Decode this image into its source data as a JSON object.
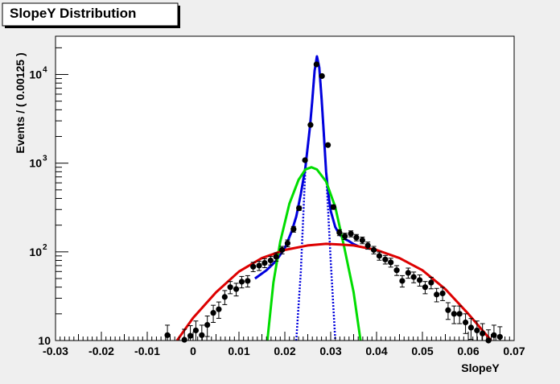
{
  "chart_data": {
    "type": "scatter",
    "title": "SlopeY Distribution",
    "xlabel": "SlopeY",
    "ylabel": "Events / ( 0.00125 )",
    "xlim": [
      -0.03,
      0.07
    ],
    "ylim": [
      10,
      27000
    ],
    "yscale": "log",
    "grid": false,
    "legend": "none",
    "x_ticks": [
      {
        "v": -0.03,
        "label": "-0.03"
      },
      {
        "v": -0.02,
        "label": "-0.02"
      },
      {
        "v": -0.01,
        "label": "-0.01"
      },
      {
        "v": 0,
        "label": "0"
      },
      {
        "v": 0.01,
        "label": "0.01"
      },
      {
        "v": 0.02,
        "label": "0.02"
      },
      {
        "v": 0.03,
        "label": "0.03"
      },
      {
        "v": 0.04,
        "label": "0.04"
      },
      {
        "v": 0.05,
        "label": "0.05"
      },
      {
        "v": 0.06,
        "label": "0.06"
      },
      {
        "v": 0.07,
        "label": "0.07"
      }
    ],
    "y_ticks": [
      {
        "v": 10,
        "base": "10",
        "exp": ""
      },
      {
        "v": 100,
        "base": "10",
        "exp": "2"
      },
      {
        "v": 1000,
        "base": "10",
        "exp": "3"
      },
      {
        "v": 10000,
        "base": "10",
        "exp": "4"
      }
    ],
    "series": [
      {
        "kind": "points",
        "color": "#000000",
        "points": [
          [
            -0.0056,
            11.5,
            3.4
          ],
          [
            -0.0031,
            7.5,
            2.7
          ],
          [
            -0.0019,
            10.2,
            3.2
          ],
          [
            -0.0006,
            11.3,
            3.4
          ],
          [
            0.0006,
            13.0,
            3.6
          ],
          [
            0.0019,
            11.5,
            3.4
          ],
          [
            0.0031,
            15.0,
            3.9
          ],
          [
            0.0044,
            20.5,
            4.5
          ],
          [
            0.0056,
            22.5,
            4.7
          ],
          [
            0.0069,
            31.0,
            5.6
          ],
          [
            0.0081,
            40.0,
            6.3
          ],
          [
            0.0094,
            38.0,
            6.2
          ],
          [
            0.0106,
            46.0,
            6.8
          ],
          [
            0.0119,
            47.0,
            6.9
          ],
          [
            0.0131,
            68.0,
            8.2
          ],
          [
            0.0144,
            70.0,
            8.4
          ],
          [
            0.0156,
            75.0,
            8.7
          ],
          [
            0.0169,
            80.0,
            8.9
          ],
          [
            0.0181,
            88.0,
            9.4
          ],
          [
            0.0194,
            105.0,
            10.2
          ],
          [
            0.0206,
            125.0,
            11.2
          ],
          [
            0.0219,
            180.0,
            13.4
          ],
          [
            0.0231,
            310.0,
            17.6
          ],
          [
            0.0244,
            1080.0,
            33
          ],
          [
            0.0256,
            2700.0,
            52
          ],
          [
            0.0269,
            13000.0,
            114
          ],
          [
            0.0281,
            9600.0,
            98
          ],
          [
            0.0294,
            1600.0,
            40
          ],
          [
            0.0306,
            320.0,
            18
          ],
          [
            0.0319,
            165.0,
            12.8
          ],
          [
            0.0331,
            150.0,
            12.2
          ],
          [
            0.0344,
            160.0,
            12.6
          ],
          [
            0.0356,
            145.0,
            12.0
          ],
          [
            0.0369,
            135.0,
            11.6
          ],
          [
            0.0381,
            118.0,
            10.9
          ],
          [
            0.0394,
            105.0,
            10.2
          ],
          [
            0.0406,
            90.0,
            9.5
          ],
          [
            0.0419,
            82.0,
            9.1
          ],
          [
            0.0431,
            76.0,
            8.7
          ],
          [
            0.0444,
            62.0,
            7.9
          ],
          [
            0.0456,
            47.0,
            6.9
          ],
          [
            0.0469,
            58.0,
            7.6
          ],
          [
            0.0481,
            52.0,
            7.2
          ],
          [
            0.0494,
            48.0,
            6.9
          ],
          [
            0.0506,
            40.0,
            6.3
          ],
          [
            0.0519,
            45.0,
            6.7
          ],
          [
            0.0531,
            33.0,
            5.7
          ],
          [
            0.0544,
            34.0,
            5.8
          ],
          [
            0.0556,
            22.0,
            4.7
          ],
          [
            0.0569,
            20.0,
            4.5
          ],
          [
            0.0581,
            20.0,
            4.5
          ],
          [
            0.0594,
            16.0,
            4.0
          ],
          [
            0.0606,
            14.0,
            3.7
          ],
          [
            0.0619,
            13.0,
            3.6
          ],
          [
            0.0631,
            12.0,
            3.5
          ],
          [
            0.0644,
            10.0,
            3.2
          ],
          [
            0.0656,
            11.5,
            3.4
          ],
          [
            0.0669,
            11.0,
            3.3
          ]
        ]
      },
      {
        "kind": "curve",
        "style": "solid",
        "color": "#0000dd",
        "points": [
          [
            0.0135,
            50
          ],
          [
            0.016,
            62
          ],
          [
            0.018,
            78
          ],
          [
            0.02,
            110
          ],
          [
            0.0215,
            170
          ],
          [
            0.0225,
            250
          ],
          [
            0.0235,
            450
          ],
          [
            0.0245,
            900
          ],
          [
            0.0255,
            2600
          ],
          [
            0.026,
            5200
          ],
          [
            0.0265,
            11000
          ],
          [
            0.027,
            16000
          ],
          [
            0.0275,
            12000
          ],
          [
            0.028,
            5500
          ],
          [
            0.0285,
            2200
          ],
          [
            0.029,
            800
          ],
          [
            0.0295,
            450
          ],
          [
            0.03,
            290
          ],
          [
            0.031,
            190
          ],
          [
            0.032,
            155
          ],
          [
            0.033,
            140
          ],
          [
            0.034,
            132
          ],
          [
            0.035,
            122
          ],
          [
            0.036,
            116
          ]
        ]
      },
      {
        "kind": "curve",
        "style": "dotted",
        "color": "#0000dd",
        "points": [
          [
            0.0225,
            10
          ],
          [
            0.0235,
            60
          ],
          [
            0.0245,
            900
          ],
          [
            0.0255,
            2600
          ],
          [
            0.026,
            5200
          ],
          [
            0.0265,
            11000
          ],
          [
            0.027,
            16000
          ],
          [
            0.0275,
            12000
          ],
          [
            0.028,
            5500
          ],
          [
            0.029,
            800
          ],
          [
            0.03,
            80
          ],
          [
            0.031,
            10
          ]
        ]
      },
      {
        "kind": "curve",
        "style": "solid",
        "color": "#00dd00",
        "points": [
          [
            0.0162,
            10
          ],
          [
            0.0175,
            45
          ],
          [
            0.019,
            130
          ],
          [
            0.021,
            350
          ],
          [
            0.023,
            650
          ],
          [
            0.0245,
            850
          ],
          [
            0.0258,
            900
          ],
          [
            0.027,
            850
          ],
          [
            0.029,
            620
          ],
          [
            0.031,
            320
          ],
          [
            0.033,
            110
          ],
          [
            0.035,
            35
          ],
          [
            0.0365,
            10
          ]
        ]
      },
      {
        "kind": "curve",
        "style": "solid",
        "color": "#dd0000",
        "points": [
          [
            -0.0035,
            10
          ],
          [
            0.0,
            18
          ],
          [
            0.005,
            35
          ],
          [
            0.01,
            60
          ],
          [
            0.015,
            85
          ],
          [
            0.02,
            105
          ],
          [
            0.025,
            118
          ],
          [
            0.029,
            123
          ],
          [
            0.032,
            121
          ],
          [
            0.035,
            118
          ],
          [
            0.04,
            105
          ],
          [
            0.045,
            85
          ],
          [
            0.05,
            62
          ],
          [
            0.055,
            38
          ],
          [
            0.06,
            20
          ],
          [
            0.065,
            10
          ]
        ]
      }
    ]
  }
}
